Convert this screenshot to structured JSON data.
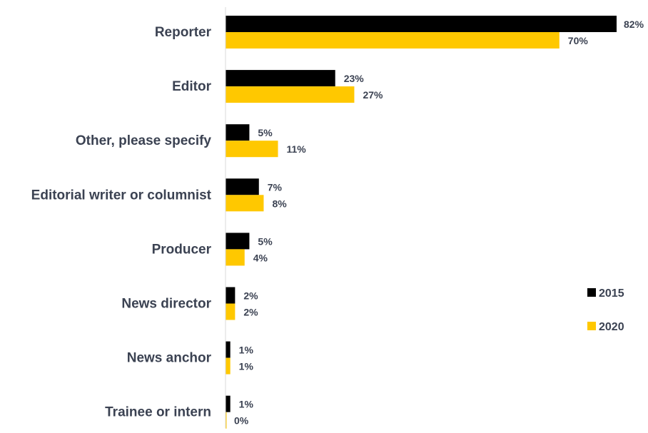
{
  "chart_data": {
    "type": "bar",
    "orientation": "horizontal",
    "categories": [
      "Reporter",
      "Editor",
      "Other, please specify",
      "Editorial writer or columnist",
      "Producer",
      "News director",
      "News anchor",
      "Trainee or intern"
    ],
    "series": [
      {
        "name": "2015",
        "color": "#000000",
        "values": [
          82,
          23,
          5,
          7,
          5,
          2,
          1,
          1
        ],
        "labels": [
          "82%",
          "23%",
          "5%",
          "7%",
          "5%",
          "2%",
          "1%",
          "1%"
        ]
      },
      {
        "name": "2020",
        "color": "#ffc800",
        "values": [
          70,
          27,
          11,
          8,
          4,
          2,
          1,
          0
        ],
        "labels": [
          "70%",
          "27%",
          "11%",
          "8%",
          "4%",
          "2%",
          "1%",
          "0%"
        ]
      }
    ],
    "xlim": [
      0,
      82
    ],
    "grid": false,
    "legend_position": "right"
  }
}
